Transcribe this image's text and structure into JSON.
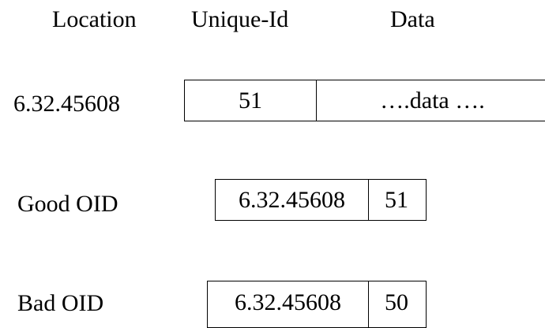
{
  "headers": {
    "location": "Location",
    "unique_id": "Unique-Id",
    "data": "Data"
  },
  "record": {
    "location": "6.32.45608",
    "unique_id": "51",
    "data": "….data …."
  },
  "good_oid": {
    "label": "Good OID",
    "location": "6.32.45608",
    "unique_id": "51"
  },
  "bad_oid": {
    "label": "Bad OID",
    "location": "6.32.45608",
    "unique_id": "50"
  }
}
